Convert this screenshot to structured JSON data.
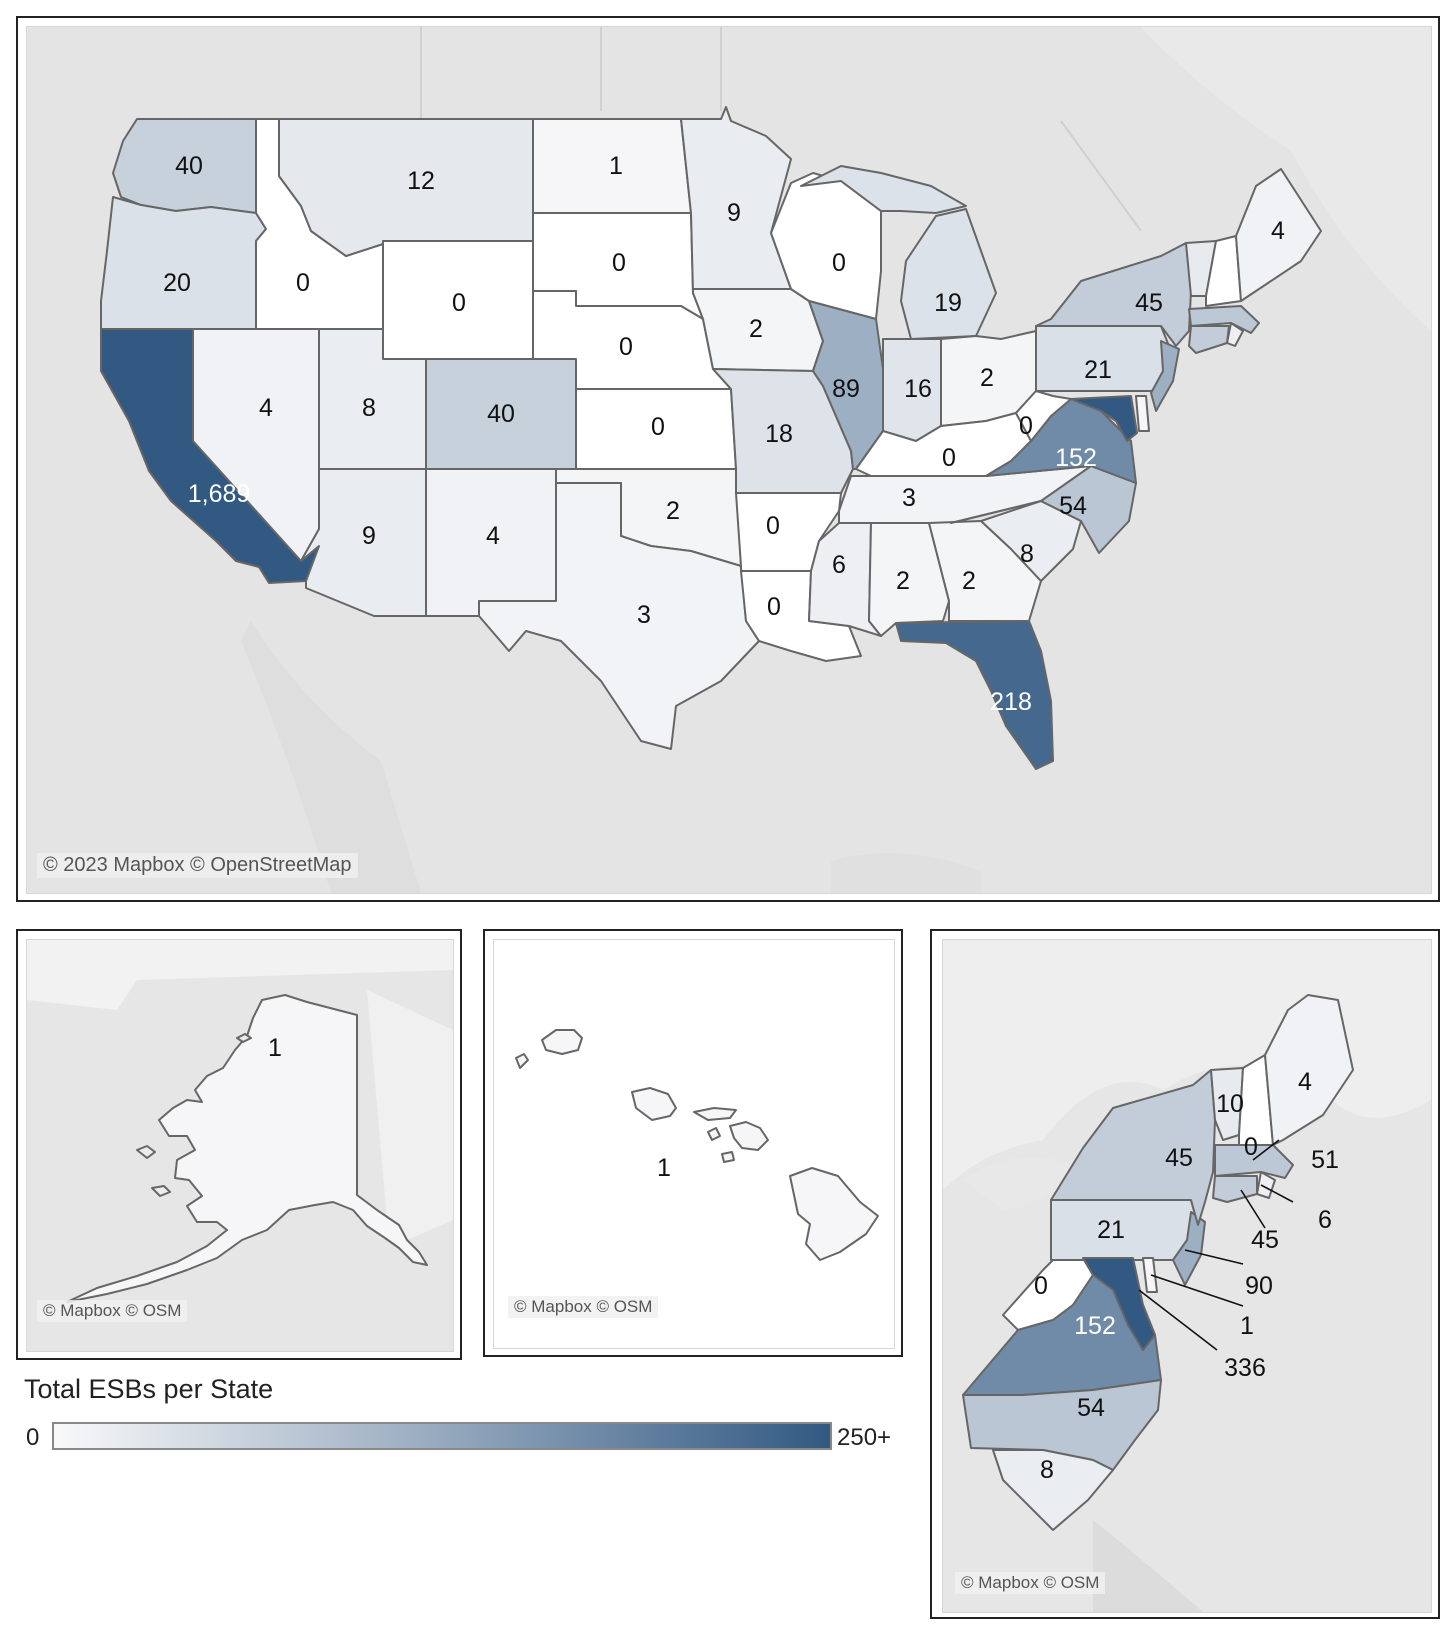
{
  "scale": {
    "min": 0,
    "max": 250,
    "color_low": "#f9f9fa",
    "color_high": "#325982",
    "zero_color": "#ffffff"
  },
  "legend": {
    "title": "Total ESBs per State",
    "min_label": "0",
    "max_label": "250+"
  },
  "credits": {
    "main": "© 2023 Mapbox © OpenStreetMap",
    "inset": "© Mapbox © OSM"
  },
  "states": [
    {
      "code": "WA",
      "value": 40,
      "label": "40"
    },
    {
      "code": "OR",
      "value": 20,
      "label": "20"
    },
    {
      "code": "CA",
      "value": 1689,
      "label": "1,689"
    },
    {
      "code": "ID",
      "value": 0,
      "label": "0"
    },
    {
      "code": "NV",
      "value": 4,
      "label": "4"
    },
    {
      "code": "MT",
      "value": 12,
      "label": "12"
    },
    {
      "code": "WY",
      "value": 0,
      "label": "0"
    },
    {
      "code": "UT",
      "value": 8,
      "label": "8"
    },
    {
      "code": "AZ",
      "value": 9,
      "label": "9"
    },
    {
      "code": "CO",
      "value": 40,
      "label": "40"
    },
    {
      "code": "NM",
      "value": 4,
      "label": "4"
    },
    {
      "code": "ND",
      "value": 1,
      "label": "1"
    },
    {
      "code": "SD",
      "value": 0,
      "label": "0"
    },
    {
      "code": "NE",
      "value": 0,
      "label": "0"
    },
    {
      "code": "KS",
      "value": 0,
      "label": "0"
    },
    {
      "code": "OK",
      "value": 2,
      "label": "2"
    },
    {
      "code": "TX",
      "value": 3,
      "label": "3"
    },
    {
      "code": "MN",
      "value": 9,
      "label": "9"
    },
    {
      "code": "IA",
      "value": 2,
      "label": "2"
    },
    {
      "code": "MO",
      "value": 18,
      "label": "18"
    },
    {
      "code": "AR",
      "value": 0,
      "label": "0"
    },
    {
      "code": "LA",
      "value": 0,
      "label": "0"
    },
    {
      "code": "WI",
      "value": 0,
      "label": "0"
    },
    {
      "code": "IL",
      "value": 89,
      "label": "89"
    },
    {
      "code": "MI",
      "value": 19,
      "label": "19"
    },
    {
      "code": "IN",
      "value": 16,
      "label": "16"
    },
    {
      "code": "OH",
      "value": 2,
      "label": "2"
    },
    {
      "code": "KY",
      "value": 0,
      "label": "0"
    },
    {
      "code": "TN",
      "value": 3,
      "label": "3"
    },
    {
      "code": "MS",
      "value": 6,
      "label": "6"
    },
    {
      "code": "AL",
      "value": 2,
      "label": "2"
    },
    {
      "code": "GA",
      "value": 2,
      "label": "2"
    },
    {
      "code": "FL",
      "value": 218,
      "label": "218"
    },
    {
      "code": "SC",
      "value": 8,
      "label": "8"
    },
    {
      "code": "NC",
      "value": 54,
      "label": "54"
    },
    {
      "code": "VA",
      "value": 152,
      "label": "152"
    },
    {
      "code": "WV",
      "value": 0,
      "label": "0"
    },
    {
      "code": "PA",
      "value": 21,
      "label": "21"
    },
    {
      "code": "NY",
      "value": 45,
      "label": "45"
    },
    {
      "code": "VT",
      "value": 10,
      "label": "10"
    },
    {
      "code": "NH",
      "value": 0,
      "label": "0"
    },
    {
      "code": "ME",
      "value": 4,
      "label": "4"
    },
    {
      "code": "MA",
      "value": 51,
      "label": "51"
    },
    {
      "code": "RI",
      "value": 6,
      "label": "6"
    },
    {
      "code": "CT",
      "value": 45,
      "label": "45"
    },
    {
      "code": "NJ",
      "value": 90,
      "label": "90"
    },
    {
      "code": "DE",
      "value": 1,
      "label": "1"
    },
    {
      "code": "MD",
      "value": 336,
      "label": "336"
    },
    {
      "code": "AK",
      "value": 1,
      "label": "1"
    },
    {
      "code": "HI",
      "value": 1,
      "label": "1"
    }
  ]
}
